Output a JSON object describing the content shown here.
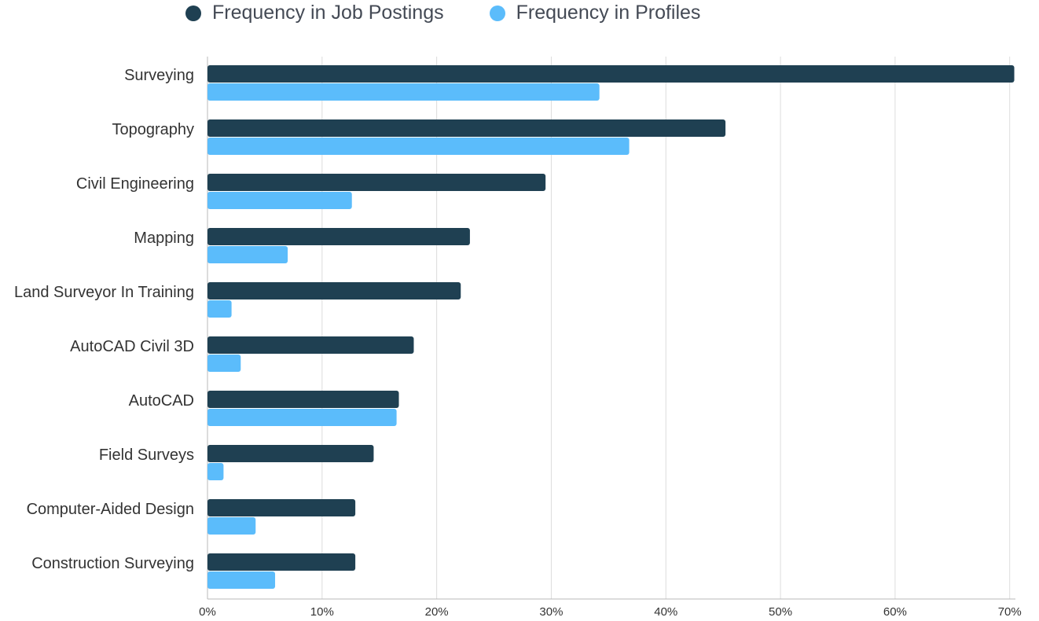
{
  "colors": {
    "job_postings": "#1f4052",
    "profiles": "#5bbcfb",
    "grid": "#dcdcdc",
    "axis": "#b8b8b8",
    "text": "#333333"
  },
  "legend": [
    {
      "label": "Frequency in Job Postings",
      "color_key": "job_postings"
    },
    {
      "label": "Frequency in Profiles",
      "color_key": "profiles"
    }
  ],
  "chart_data": {
    "type": "bar",
    "orientation": "horizontal",
    "title": "",
    "xlabel": "",
    "ylabel": "",
    "categories": [
      "Surveying",
      "Topography",
      "Civil Engineering",
      "Mapping",
      "Land Surveyor In Training",
      "AutoCAD Civil 3D",
      "AutoCAD",
      "Field Surveys",
      "Computer-Aided Design",
      "Construction Surveying"
    ],
    "series": [
      {
        "name": "Frequency in Job Postings",
        "color_key": "job_postings",
        "values": [
          70.4,
          45.2,
          29.5,
          22.9,
          22.1,
          18.0,
          16.7,
          14.5,
          12.9,
          12.9
        ]
      },
      {
        "name": "Frequency in Profiles",
        "color_key": "profiles",
        "values": [
          34.2,
          36.8,
          12.6,
          7.0,
          2.1,
          2.9,
          16.5,
          1.4,
          4.2,
          5.9
        ]
      }
    ],
    "xlim": [
      0,
      70.5
    ],
    "xticks": [
      0,
      10,
      20,
      30,
      40,
      50,
      60,
      70
    ],
    "xtick_labels": [
      "0%",
      "10%",
      "20%",
      "30%",
      "40%",
      "50%",
      "60%",
      "70%"
    ],
    "grid": true,
    "legend_position": "top-center"
  }
}
